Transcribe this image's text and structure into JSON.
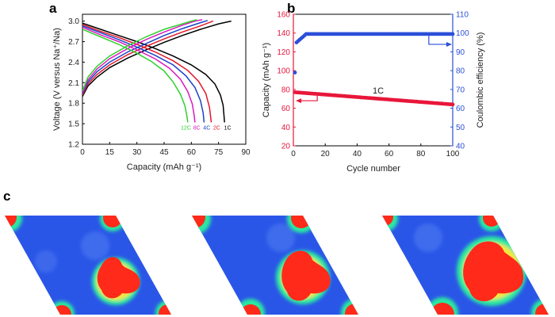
{
  "panel_labels": {
    "a": "a",
    "b": "b",
    "c": "c"
  },
  "chart_data": [
    {
      "panel": "a",
      "type": "line",
      "xlabel": "Capacity (mAh g⁻¹)",
      "ylabel": "Voltage (V versus Na⁺/Na)",
      "xlim": [
        0,
        90
      ],
      "ylim": [
        1.2,
        3.1
      ],
      "xticks": [
        "0",
        "15",
        "30",
        "45",
        "60",
        "75",
        "90"
      ],
      "yticks": [
        "1.2",
        "1.5",
        "1.8",
        "2.1",
        "2.4",
        "2.7",
        "3.0"
      ],
      "grid": false,
      "series": [
        {
          "name": "1C",
          "color": "#000000",
          "discharge": {
            "x": [
              0,
              10,
              20,
              30,
              40,
              50,
              60,
              68,
              73,
              76,
              77.5,
              78,
              78.3
            ],
            "y": [
              2.97,
              2.88,
              2.79,
              2.7,
              2.6,
              2.49,
              2.36,
              2.22,
              2.08,
              1.92,
              1.77,
              1.62,
              1.52
            ]
          },
          "charge": {
            "x": [
              0,
              3,
              8,
              15,
              25,
              35,
              45,
              55,
              65,
              75,
              82
            ],
            "y": [
              1.9,
              2.05,
              2.18,
              2.32,
              2.46,
              2.58,
              2.69,
              2.79,
              2.88,
              2.96,
              3.0
            ]
          }
        },
        {
          "name": "2C",
          "color": "#e0182a",
          "discharge": {
            "x": [
              0,
              10,
              20,
              30,
              40,
              50,
              58,
              64,
              68,
              70,
              71
            ],
            "y": [
              2.95,
              2.85,
              2.76,
              2.66,
              2.55,
              2.42,
              2.28,
              2.12,
              1.94,
              1.74,
              1.52
            ]
          },
          "charge": {
            "x": [
              0,
              3,
              8,
              15,
              25,
              35,
              45,
              55,
              65,
              72
            ],
            "y": [
              1.92,
              2.08,
              2.22,
              2.36,
              2.51,
              2.63,
              2.74,
              2.84,
              2.93,
              3.0
            ]
          }
        },
        {
          "name": "4C",
          "color": "#1a44c8",
          "discharge": {
            "x": [
              0,
              10,
              20,
              30,
              40,
              50,
              57,
              62,
              65,
              66.5,
              67
            ],
            "y": [
              2.93,
              2.83,
              2.73,
              2.62,
              2.5,
              2.36,
              2.2,
              2.03,
              1.84,
              1.66,
              1.52
            ]
          },
          "charge": {
            "x": [
              0,
              3,
              8,
              15,
              25,
              35,
              45,
              55,
              63,
              69
            ],
            "y": [
              1.94,
              2.11,
              2.26,
              2.4,
              2.55,
              2.67,
              2.79,
              2.89,
              2.96,
              3.01
            ]
          }
        },
        {
          "name": "8C",
          "color": "#d81bbf",
          "discharge": {
            "x": [
              0,
              10,
              20,
              30,
              40,
              48,
              54,
              58,
              60.5,
              61.5,
              62
            ],
            "y": [
              2.91,
              2.8,
              2.7,
              2.58,
              2.45,
              2.31,
              2.15,
              1.97,
              1.79,
              1.63,
              1.52
            ]
          },
          "charge": {
            "x": [
              0,
              3,
              8,
              15,
              25,
              35,
              45,
              55,
              62,
              66
            ],
            "y": [
              1.96,
              2.14,
              2.3,
              2.45,
              2.6,
              2.73,
              2.84,
              2.94,
              3.0,
              3.02
            ]
          }
        },
        {
          "name": "12C",
          "color": "#2fd12f",
          "discharge": {
            "x": [
              0,
              10,
              20,
              30,
              38,
              45,
              50,
              54,
              56.5,
              57.5,
              58
            ],
            "y": [
              2.88,
              2.77,
              2.66,
              2.53,
              2.41,
              2.27,
              2.11,
              1.93,
              1.76,
              1.62,
              1.52
            ]
          },
          "charge": {
            "x": [
              0,
              3,
              8,
              15,
              25,
              35,
              45,
              55,
              60,
              63
            ],
            "y": [
              1.98,
              2.18,
              2.34,
              2.49,
              2.64,
              2.77,
              2.88,
              2.96,
              3.0,
              3.02
            ]
          }
        }
      ],
      "rate_labels": [
        {
          "text": "12C",
          "color": "#2fd12f",
          "at": [
            57,
            1.62
          ]
        },
        {
          "text": "8C",
          "color": "#d81bbf",
          "at": [
            63,
            1.62
          ]
        },
        {
          "text": "4C",
          "color": "#1a44c8",
          "at": [
            68.5,
            1.62
          ]
        },
        {
          "text": "2C",
          "color": "#e0182a",
          "at": [
            74,
            1.62
          ]
        },
        {
          "text": "1C",
          "color": "#000000",
          "at": [
            80,
            1.62
          ]
        }
      ]
    },
    {
      "panel": "b",
      "type": "scatter",
      "xlabel": "Cycle number",
      "ylabel_left": "Capacity (mAh g⁻¹)",
      "ylabel_right": "Coulombic efficiency (%)",
      "xlim": [
        0,
        100
      ],
      "ylim_left": [
        20,
        160
      ],
      "ylim_right": [
        40,
        110
      ],
      "xticks": [
        "0",
        "20",
        "40",
        "60",
        "80",
        "100"
      ],
      "yticks_left": [
        "20",
        "40",
        "60",
        "80",
        "100",
        "120",
        "140",
        "160"
      ],
      "yticks_right": [
        "40",
        "50",
        "60",
        "70",
        "80",
        "90",
        "100",
        "110"
      ],
      "left_color": "#e8163a",
      "right_color": "#2b4fd8",
      "annotation": "1C",
      "capacity": {
        "first": 77,
        "last": 64
      },
      "coulombic_efficiency": {
        "first": 79,
        "second": 95,
        "plateau": 99.5
      }
    }
  ],
  "panel_c": {
    "background": "#2a56e8",
    "hotspot": "#ff2a1a",
    "glow": "#2ae8a0"
  }
}
